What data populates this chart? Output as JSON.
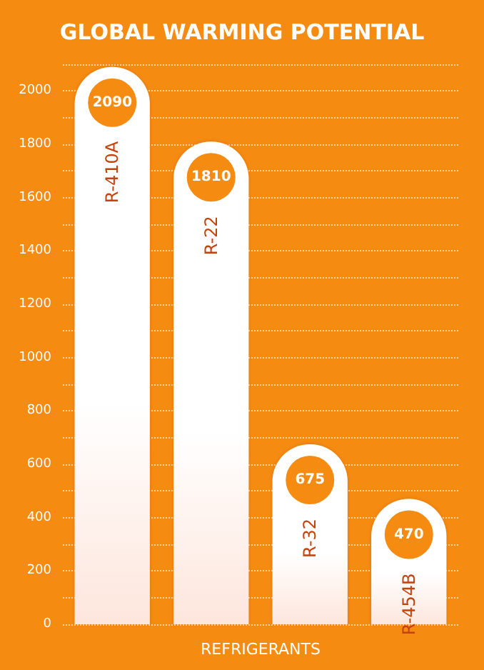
{
  "chart_data": {
    "type": "bar",
    "title": "GLOBAL WARMING POTENTIAL",
    "xlabel": "REFRIGERANTS",
    "categories": [
      "R-410A",
      "R-22",
      "R-32",
      "R-454B"
    ],
    "values": [
      2090,
      1810,
      675,
      470
    ],
    "color": "#ffffff",
    "data_labels": true,
    "ylim": [
      0,
      2100
    ],
    "yticks": [
      0,
      {
        "value": 100,
        "label": null
      },
      200,
      {
        "value": 300,
        "label": null
      },
      400,
      {
        "value": 500,
        "label": null
      },
      600,
      {
        "value": 700,
        "label": null
      },
      800,
      {
        "value": 900,
        "label": null
      },
      1000,
      {
        "value": 1100,
        "label": null
      },
      1200,
      {
        "value": 1300,
        "label": null
      },
      1400,
      {
        "value": 1500,
        "label": null
      },
      1600,
      {
        "value": 1700,
        "label": null
      },
      1800,
      {
        "value": 1900,
        "label": null
      },
      2000,
      {
        "value": 2100,
        "label": null
      }
    ],
    "grid": "y"
  }
}
